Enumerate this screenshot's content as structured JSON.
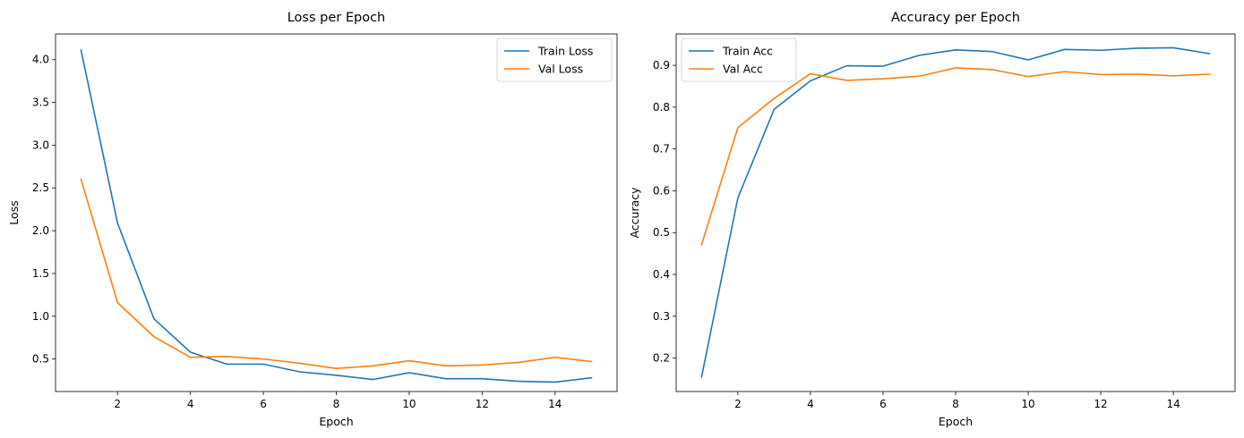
{
  "chart_data": [
    {
      "type": "line",
      "title": "Loss per Epoch",
      "xlabel": "Epoch",
      "ylabel": "Loss",
      "xlim": [
        0.3,
        15.7
      ],
      "ylim": [
        0.12,
        4.3
      ],
      "xticks": [
        2,
        4,
        6,
        8,
        10,
        12,
        14
      ],
      "yticks": [
        0.5,
        1.0,
        1.5,
        2.0,
        2.5,
        3.0,
        3.5,
        4.0
      ],
      "ytick_labels": [
        "0.5",
        "1.0",
        "1.5",
        "2.0",
        "2.5",
        "3.0",
        "3.5",
        "4.0"
      ],
      "legend_position": "upper right",
      "grid": false,
      "x": [
        1,
        2,
        3,
        4,
        5,
        6,
        7,
        8,
        9,
        10,
        11,
        12,
        13,
        14,
        15
      ],
      "series": [
        {
          "name": "Train Loss",
          "color": "#1f77b4",
          "values": [
            4.11,
            2.09,
            0.97,
            0.58,
            0.44,
            0.44,
            0.35,
            0.31,
            0.26,
            0.34,
            0.27,
            0.27,
            0.24,
            0.23,
            0.28
          ]
        },
        {
          "name": "Val Loss",
          "color": "#ff7f0e",
          "values": [
            2.6,
            1.16,
            0.76,
            0.52,
            0.53,
            0.5,
            0.45,
            0.39,
            0.42,
            0.48,
            0.42,
            0.43,
            0.46,
            0.52,
            0.47
          ]
        }
      ]
    },
    {
      "type": "line",
      "title": "Accuracy per Epoch",
      "xlabel": "Epoch",
      "ylabel": "Accuracy",
      "xlim": [
        0.3,
        15.7
      ],
      "ylim": [
        0.12,
        0.975
      ],
      "xticks": [
        2,
        4,
        6,
        8,
        10,
        12,
        14
      ],
      "yticks": [
        0.2,
        0.3,
        0.4,
        0.5,
        0.6,
        0.7,
        0.8,
        0.9
      ],
      "ytick_labels": [
        "0.2",
        "0.3",
        "0.4",
        "0.5",
        "0.6",
        "0.7",
        "0.8",
        "0.9"
      ],
      "legend_position": "upper left",
      "grid": false,
      "x": [
        1,
        2,
        3,
        4,
        5,
        6,
        7,
        8,
        9,
        10,
        11,
        12,
        13,
        14,
        15
      ],
      "series": [
        {
          "name": "Train Acc",
          "color": "#1f77b4",
          "values": [
            0.155,
            0.583,
            0.795,
            0.863,
            0.899,
            0.898,
            0.924,
            0.937,
            0.933,
            0.913,
            0.938,
            0.936,
            0.941,
            0.942,
            0.928
          ]
        },
        {
          "name": "Val Acc",
          "color": "#ff7f0e",
          "values": [
            0.471,
            0.751,
            0.821,
            0.88,
            0.864,
            0.868,
            0.874,
            0.894,
            0.89,
            0.873,
            0.885,
            0.878,
            0.879,
            0.875,
            0.879
          ]
        }
      ]
    }
  ]
}
